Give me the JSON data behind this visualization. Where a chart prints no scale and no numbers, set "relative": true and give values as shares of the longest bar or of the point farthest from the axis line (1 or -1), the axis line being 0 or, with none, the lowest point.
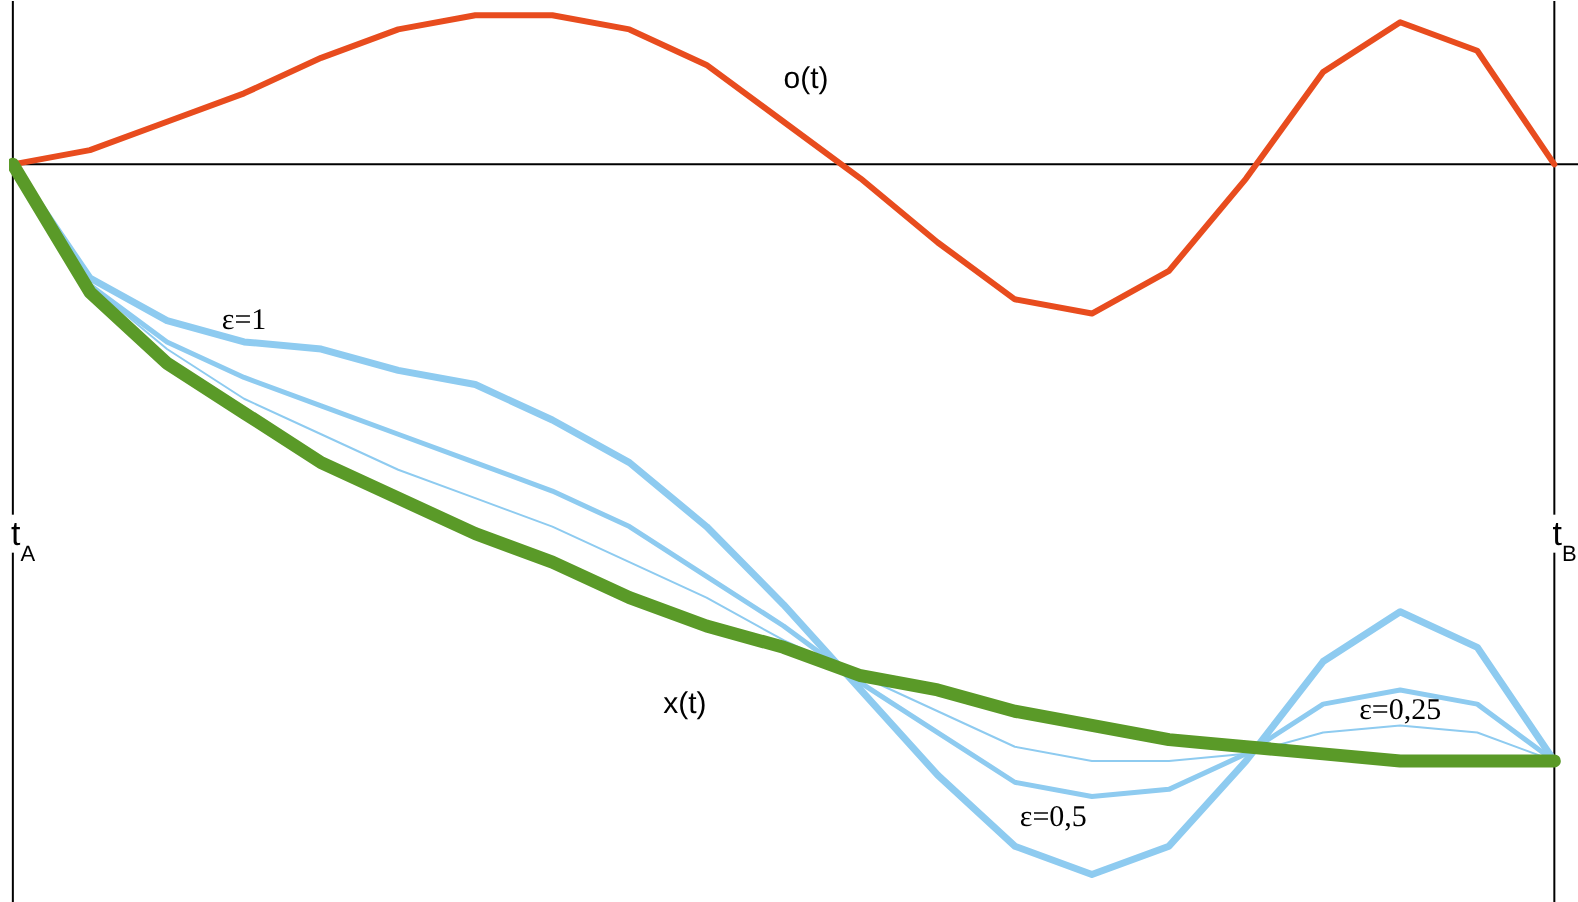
{
  "chart_data": {
    "type": "line",
    "relative": true,
    "grid": "x",
    "categories": [
      "t$_{A}$",
      null,
      null,
      null,
      null,
      null,
      null,
      null,
      null,
      null,
      null,
      null,
      null,
      null,
      null,
      null,
      null,
      null,
      null,
      null,
      "t$_{B}$"
    ],
    "series": [
      {
        "name": "o(t)",
        "color": "#e84c1e",
        "values": [
          0,
          0.02,
          0.06,
          0.1,
          0.15,
          0.19,
          0.21,
          0.21,
          0.19,
          0.14,
          0.06,
          -0.02,
          -0.11,
          -0.19,
          -0.21,
          -0.15,
          -0.02,
          0.13,
          0.2,
          0.16,
          0
        ]
      },
      {
        "name": "ε=1",
        "color": "#8ecbf0",
        "values": [
          0,
          -0.16,
          -0.22,
          -0.25,
          -0.26,
          -0.29,
          -0.31,
          -0.36,
          -0.42,
          -0.51,
          -0.62,
          -0.74,
          -0.86,
          -0.96,
          -1.0,
          -0.96,
          -0.84,
          -0.7,
          -0.63,
          -0.68,
          -0.84
        ]
      },
      {
        "name": "ε=0,5",
        "color": "#8ecbf0",
        "values": [
          0,
          -0.17,
          -0.25,
          -0.3,
          -0.34,
          -0.38,
          -0.42,
          -0.46,
          -0.51,
          -0.58,
          -0.65,
          -0.73,
          -0.8,
          -0.87,
          -0.89,
          -0.88,
          -0.83,
          -0.76,
          -0.74,
          -0.76,
          -0.84
        ]
      },
      {
        "name": "ε=0,25",
        "color": "#8ecbf0",
        "values": [
          0,
          -0.17,
          -0.26,
          -0.33,
          -0.38,
          -0.43,
          -0.47,
          -0.51,
          -0.56,
          -0.61,
          -0.67,
          -0.72,
          -0.77,
          -0.82,
          -0.84,
          -0.84,
          -0.83,
          -0.8,
          -0.79,
          -0.8,
          -0.84
        ]
      },
      {
        "name": "x(t)",
        "color": "#5a9a28",
        "values": [
          0,
          -0.18,
          -0.28,
          -0.35,
          -0.42,
          -0.47,
          -0.52,
          -0.56,
          -0.61,
          -0.65,
          -0.68,
          -0.72,
          -0.74,
          -0.77,
          -0.79,
          -0.81,
          -0.82,
          -0.83,
          -0.84,
          -0.84,
          -0.84
        ]
      }
    ]
  }
}
